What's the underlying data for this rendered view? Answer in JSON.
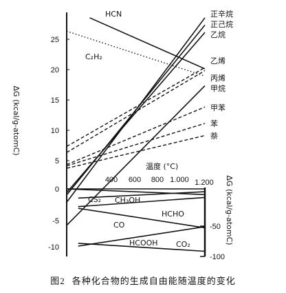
{
  "chart_data": {
    "type": "line",
    "xlabel": "温度 (°C)",
    "ylabel": "ΔG (kcal/g-atomC)",
    "ylabel_right": "ΔG (kcal/g-atomC)",
    "x_tick_labels": [
      "400",
      "600",
      "800",
      "1.000",
      "1.200"
    ],
    "xlim": [
      0,
      1200
    ],
    "upper_panel": {
      "ylim": [
        0,
        28
      ],
      "y_ticks": [
        5,
        10,
        15,
        20,
        25
      ],
      "series": [
        {
          "name": "HCN",
          "style": "solid",
          "x": [
            200,
            1200
          ],
          "y": [
            28.2,
            19.8
          ]
        },
        {
          "name": "C₂H₂",
          "style": "dotted",
          "x": [
            0,
            1200
          ],
          "y": [
            26.0,
            18.6
          ]
        },
        {
          "name": "正辛烷",
          "style": "solid",
          "x": [
            0,
            1200
          ],
          "y": [
            -2.2,
            28.2
          ]
        },
        {
          "name": "正己烷",
          "style": "solid",
          "x": [
            0,
            1200
          ],
          "y": [
            -1.0,
            27.0
          ]
        },
        {
          "name": "乙烷",
          "style": "solid",
          "x": [
            0,
            1200
          ],
          "y": [
            -0.6,
            25.8
          ]
        },
        {
          "name": "乙烯",
          "style": "dashed",
          "x": [
            0,
            1200
          ],
          "y": [
            7.0,
            20.0
          ]
        },
        {
          "name": "丙烯",
          "style": "dashed",
          "x": [
            0,
            1200
          ],
          "y": [
            6.0,
            19.5
          ]
        },
        {
          "name": "甲烷",
          "style": "solid",
          "x": [
            0,
            1200
          ],
          "y": [
            -6.0,
            17.0
          ]
        },
        {
          "name": "甲苯",
          "style": "dashed",
          "x": [
            0,
            1200
          ],
          "y": [
            4.0,
            13.5
          ]
        },
        {
          "name": "苯",
          "style": "dashed",
          "x": [
            0,
            1200
          ],
          "y": [
            3.8,
            10.8
          ]
        },
        {
          "name": "萘",
          "style": "dashed",
          "x": [
            0,
            1200
          ],
          "y": [
            3.4,
            8.8
          ]
        }
      ]
    },
    "lower_panel": {
      "ylim": [
        -11,
        0
      ],
      "y_ticks": [
        0,
        -5,
        -10
      ],
      "right_ticks": [
        "-50",
        "-100"
      ],
      "series": [
        {
          "name": "CS₂",
          "style": "solid",
          "x": [
            0,
            1200
          ],
          "y": [
            0.0,
            -1.0
          ]
        },
        {
          "name": "CH₃OH",
          "style": "solid",
          "x": [
            100,
            1200
          ],
          "y": [
            -1.6,
            -0.5
          ]
        },
        {
          "name": "HCHO",
          "style": "solid",
          "x": [
            100,
            1200
          ],
          "y": [
            -3.1,
            -1.5
          ]
        },
        {
          "name": "CO",
          "style": "solid",
          "x": [
            100,
            1200
          ],
          "y": [
            -3.4,
            -6.8
          ]
        },
        {
          "name": "HCOOH",
          "style": "solid",
          "x": [
            100,
            1200
          ],
          "y": [
            -10.0,
            -6.6
          ]
        },
        {
          "name": "CO₂",
          "style": "solid",
          "x": [
            100,
            1200
          ],
          "y": [
            -9.5,
            -10.9
          ]
        }
      ]
    }
  },
  "caption": {
    "number": "图2",
    "text": "各种化合物的生成自由能随温度的变化"
  }
}
